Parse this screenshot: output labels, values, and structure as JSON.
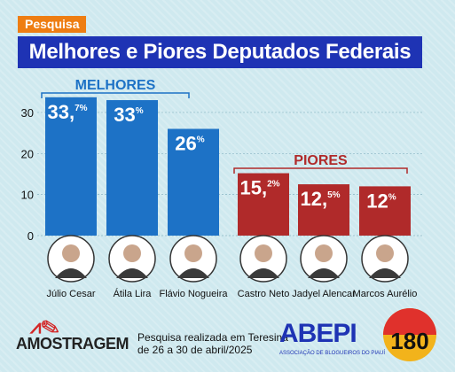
{
  "header": {
    "tag": "Pesquisa",
    "title": "Melhores e Piores Deputados Federais"
  },
  "chart_data": {
    "type": "bar",
    "ylim": [
      0,
      35
    ],
    "yticks": [
      0,
      10,
      20,
      30
    ],
    "groups": [
      {
        "label": "MELHORES",
        "color": "#1d72c6",
        "indices": [
          0,
          1,
          2
        ]
      },
      {
        "label": "PIORES",
        "color": "#b02a2a",
        "indices": [
          3,
          4,
          5
        ]
      }
    ],
    "categories": [
      "Júlio Cesar",
      "Átila Lira",
      "Flávio Nogueira",
      "Castro Neto",
      "Jadyel Alencar",
      "Marcos Aurélio"
    ],
    "values": [
      33.7,
      33,
      26,
      15.2,
      12.5,
      12
    ],
    "labels": [
      {
        "int": "33,",
        "dec": "7%"
      },
      {
        "int": "33",
        "dec": "%"
      },
      {
        "int": "26",
        "dec": "%"
      },
      {
        "int": "15,",
        "dec": "2%"
      },
      {
        "int": "12,",
        "dec": "5%"
      },
      {
        "int": "12",
        "dec": "%"
      }
    ]
  },
  "footer": {
    "institute": "AMOSTRAGEM",
    "survey_note": "Pesquisa realizada em Teresina\nde 26 a 30 de abril/2025",
    "association": "ABEPI",
    "association_sub": "ASSOCIAÇÃO DE BLOGUEIROS DO PIAUÍ",
    "badge": "180"
  }
}
